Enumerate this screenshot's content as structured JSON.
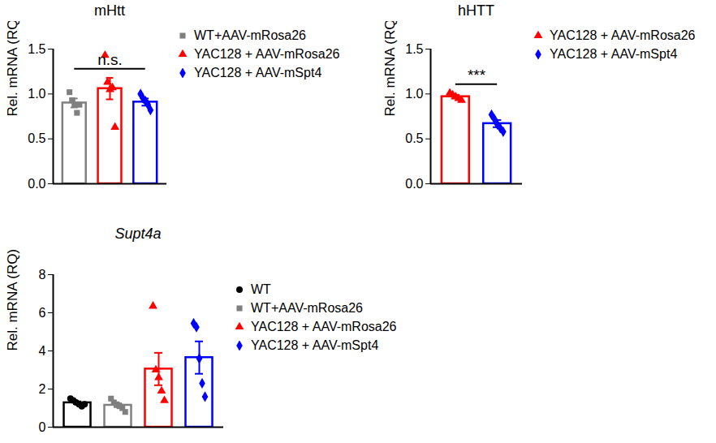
{
  "chart_data": [
    {
      "type": "bar",
      "title": "mHtt",
      "y_label": "Rel. mRNA (RQ)",
      "ylim": [
        0,
        1.5
      ],
      "yticks": [
        {
          "value": 0,
          "label": "0.0"
        },
        {
          "value": 0.5,
          "label": "0.5"
        },
        {
          "value": 1.0,
          "label": "1.0"
        },
        {
          "value": 1.5,
          "label": "1.5"
        }
      ],
      "tick_labels": "y",
      "legend": "right",
      "series": [
        {
          "name": "WT+AAV-mRosa26",
          "color": "#808080",
          "marker": "square",
          "mean": 0.9,
          "error": 0.05,
          "values": [
            1.02,
            0.93,
            0.88,
            0.79,
            0.88
          ]
        },
        {
          "name": "YAC128 + AAV-mRosa26",
          "color": "#ff0000",
          "marker": "triangle",
          "mean": 1.06,
          "error": 0.12,
          "values": [
            1.43,
            1.13,
            1.05,
            1.07,
            0.63
          ]
        },
        {
          "name": "YAC128 + AAV-mSpt4",
          "color": "#0000ff",
          "marker": "diamond",
          "mean": 0.91,
          "error": 0.04,
          "values": [
            1.0,
            0.95,
            0.92,
            0.88,
            0.82
          ]
        }
      ],
      "annotations": [
        {
          "text": "n.s.",
          "from": 0,
          "to": 2,
          "y": 1.28
        }
      ]
    },
    {
      "type": "bar",
      "title": "hHTT",
      "y_label": "Rel. mRNA (RQ)",
      "ylim": [
        0,
        1.5
      ],
      "yticks": [
        {
          "value": 0,
          "label": "0.0"
        },
        {
          "value": 0.5,
          "label": "0.5"
        },
        {
          "value": 1.0,
          "label": "1.0"
        },
        {
          "value": 1.5,
          "label": "1.5"
        }
      ],
      "tick_labels": "y",
      "legend": "right",
      "series": [
        {
          "name": "YAC128 + AAV-mRosa26",
          "color": "#ff0000",
          "marker": "triangle",
          "mean": 0.97,
          "error": 0.02,
          "values": [
            1.01,
            0.99,
            0.97,
            0.95,
            0.93
          ]
        },
        {
          "name": "YAC128 + AAV-mSpt4",
          "color": "#0000ff",
          "marker": "diamond",
          "mean": 0.67,
          "error": 0.04,
          "values": [
            0.77,
            0.72,
            0.66,
            0.62,
            0.58
          ]
        }
      ],
      "annotations": [
        {
          "text": "***",
          "from": 0,
          "to": 1,
          "y": 1.11
        }
      ]
    },
    {
      "type": "bar",
      "title": "Supt4a",
      "y_label": "Rel. mRNA (RQ)",
      "ylim": [
        0,
        8
      ],
      "yticks": [
        0,
        2,
        4,
        6,
        8
      ],
      "tick_labels": "y",
      "legend": "right",
      "series": [
        {
          "name": "WT",
          "color": "#000000",
          "marker": "circle",
          "mean": 1.28,
          "error": 0.07,
          "values": [
            1.5,
            1.4,
            1.3,
            1.2,
            1.1,
            1.2
          ]
        },
        {
          "name": "WT+AAV-mRosa26",
          "color": "#808080",
          "marker": "square",
          "mean": 1.15,
          "error": 0.1,
          "values": [
            1.5,
            1.3,
            1.2,
            1.1,
            1.0,
            0.8
          ]
        },
        {
          "name": "YAC128 + AAV-mRosa26",
          "color": "#ff0000",
          "marker": "triangle",
          "mean": 3.05,
          "error": 0.85,
          "values": [
            6.35,
            3.0,
            2.6,
            1.9,
            1.4
          ]
        },
        {
          "name": "YAC128 + AAV-mSpt4",
          "color": "#0000ff",
          "marker": "diamond",
          "mean": 3.65,
          "error": 0.85,
          "values": [
            5.45,
            5.25,
            3.6,
            2.3,
            1.6
          ]
        }
      ],
      "annotations": []
    }
  ]
}
